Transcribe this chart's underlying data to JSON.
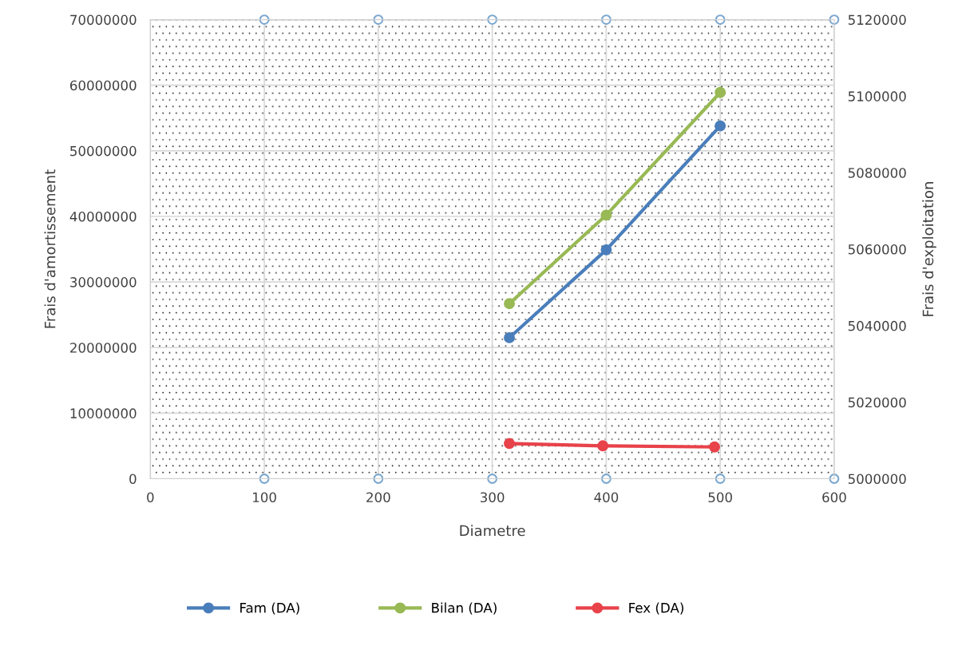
{
  "chart_data": {
    "type": "line",
    "xlabel": "Diametre",
    "ylabel": "Frais d'amortissement",
    "y2label": "Frais d'exploitation",
    "xlim": [
      0,
      600
    ],
    "xticks": [
      0,
      100,
      200,
      300,
      400,
      500,
      600
    ],
    "ylim": [
      0,
      70000000
    ],
    "yticks": [
      0,
      10000000,
      20000000,
      30000000,
      40000000,
      50000000,
      60000000,
      70000000
    ],
    "y2lim": [
      5000000,
      5120000
    ],
    "y2ticks": [
      5000000,
      5020000,
      5040000,
      5060000,
      5080000,
      5100000,
      5120000
    ],
    "grid": true,
    "legend": "bottom",
    "marker": "circle",
    "line_style": "solid",
    "series": [
      {
        "name": "Fam (DA)",
        "color": "#4a7ebb",
        "x": [
          315,
          400,
          500
        ],
        "values": [
          21500000,
          34900000,
          53800000
        ]
      },
      {
        "name": "Bilan (DA)",
        "color": "#98b954",
        "x": [
          315,
          400,
          500
        ],
        "values": [
          26700000,
          40200000,
          58900000
        ]
      },
      {
        "name": "Fex (DA)",
        "color": "#e8424a",
        "axis": "y2",
        "x": [
          315,
          397,
          495
        ],
        "values": [
          5009200,
          5008600,
          5008300
        ]
      },
      {
        "type": "scatter",
        "color": "#7ba7cf",
        "x": [
          100,
          200,
          300,
          400,
          500,
          600,
          100,
          200,
          300,
          400,
          500,
          600
        ],
        "values": [
          70000000,
          70000000,
          70000000,
          70000000,
          70000000,
          70000000,
          0,
          0,
          0,
          0,
          0,
          0
        ]
      }
    ]
  }
}
